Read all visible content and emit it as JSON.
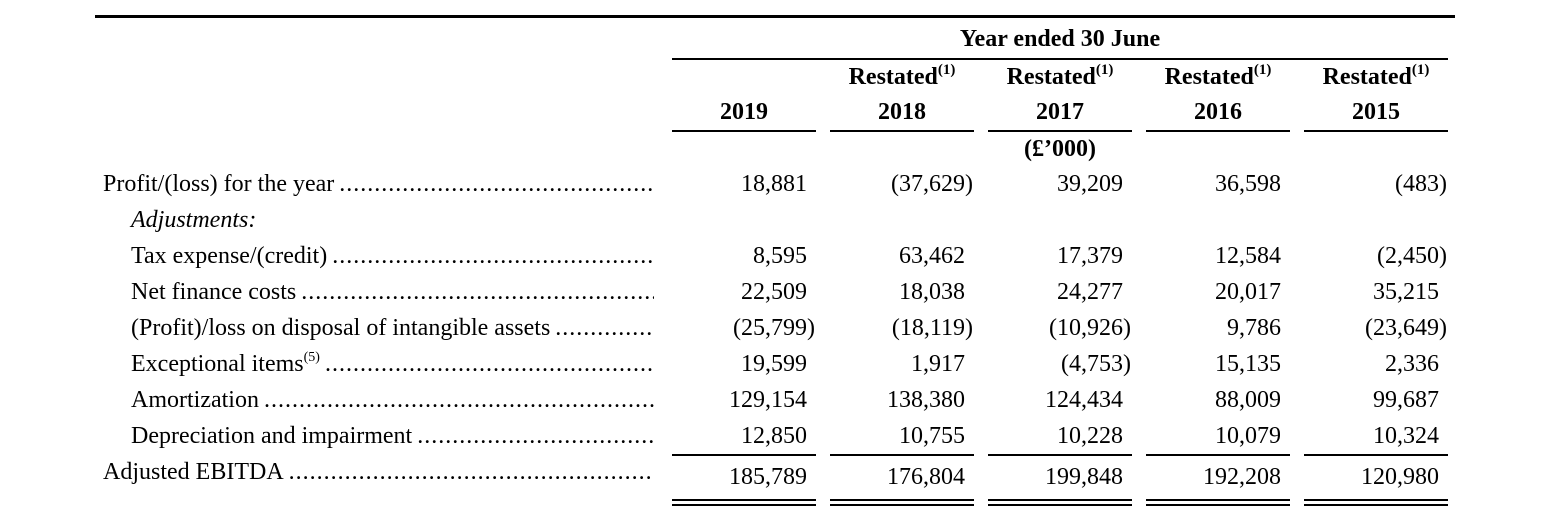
{
  "page": {
    "background": "#ffffff",
    "text_color": "#000000"
  },
  "table": {
    "spanner": "Year ended 30 June",
    "restated_label": "Restated",
    "restated_sup": "(1)",
    "units": "(£’000)",
    "years": [
      "2019",
      "2018",
      "2017",
      "2016",
      "2015"
    ],
    "rows": [
      {
        "label": "Profit/(loss) for the year",
        "values": [
          "18,881",
          "(37,629)",
          "39,209",
          "36,598",
          "(483)"
        ]
      },
      {
        "label": "Adjustments:"
      },
      {
        "label": "Tax expense/(credit)",
        "values": [
          "8,595",
          "63,462",
          "17,379",
          "12,584",
          "(2,450)"
        ]
      },
      {
        "label": "Net finance costs",
        "values": [
          "22,509",
          "18,038",
          "24,277",
          "20,017",
          "35,215"
        ]
      },
      {
        "label": "(Profit)/loss on disposal of intangible assets",
        "values": [
          "(25,799)",
          "(18,119)",
          "(10,926)",
          "9,786",
          "(23,649)"
        ]
      },
      {
        "label": "Exceptional items",
        "sup": "(5)",
        "values": [
          "19,599",
          "1,917",
          "(4,753)",
          "15,135",
          "2,336"
        ]
      },
      {
        "label": "Amortization",
        "values": [
          "129,154",
          "138,380",
          "124,434",
          "88,009",
          "99,687"
        ]
      },
      {
        "label": "Depreciation and impairment",
        "values": [
          "12,850",
          "10,755",
          "10,228",
          "10,079",
          "10,324"
        ]
      },
      {
        "label": "Adjusted EBITDA",
        "values": [
          "185,789",
          "176,804",
          "199,848",
          "192,208",
          "120,980"
        ]
      }
    ]
  }
}
